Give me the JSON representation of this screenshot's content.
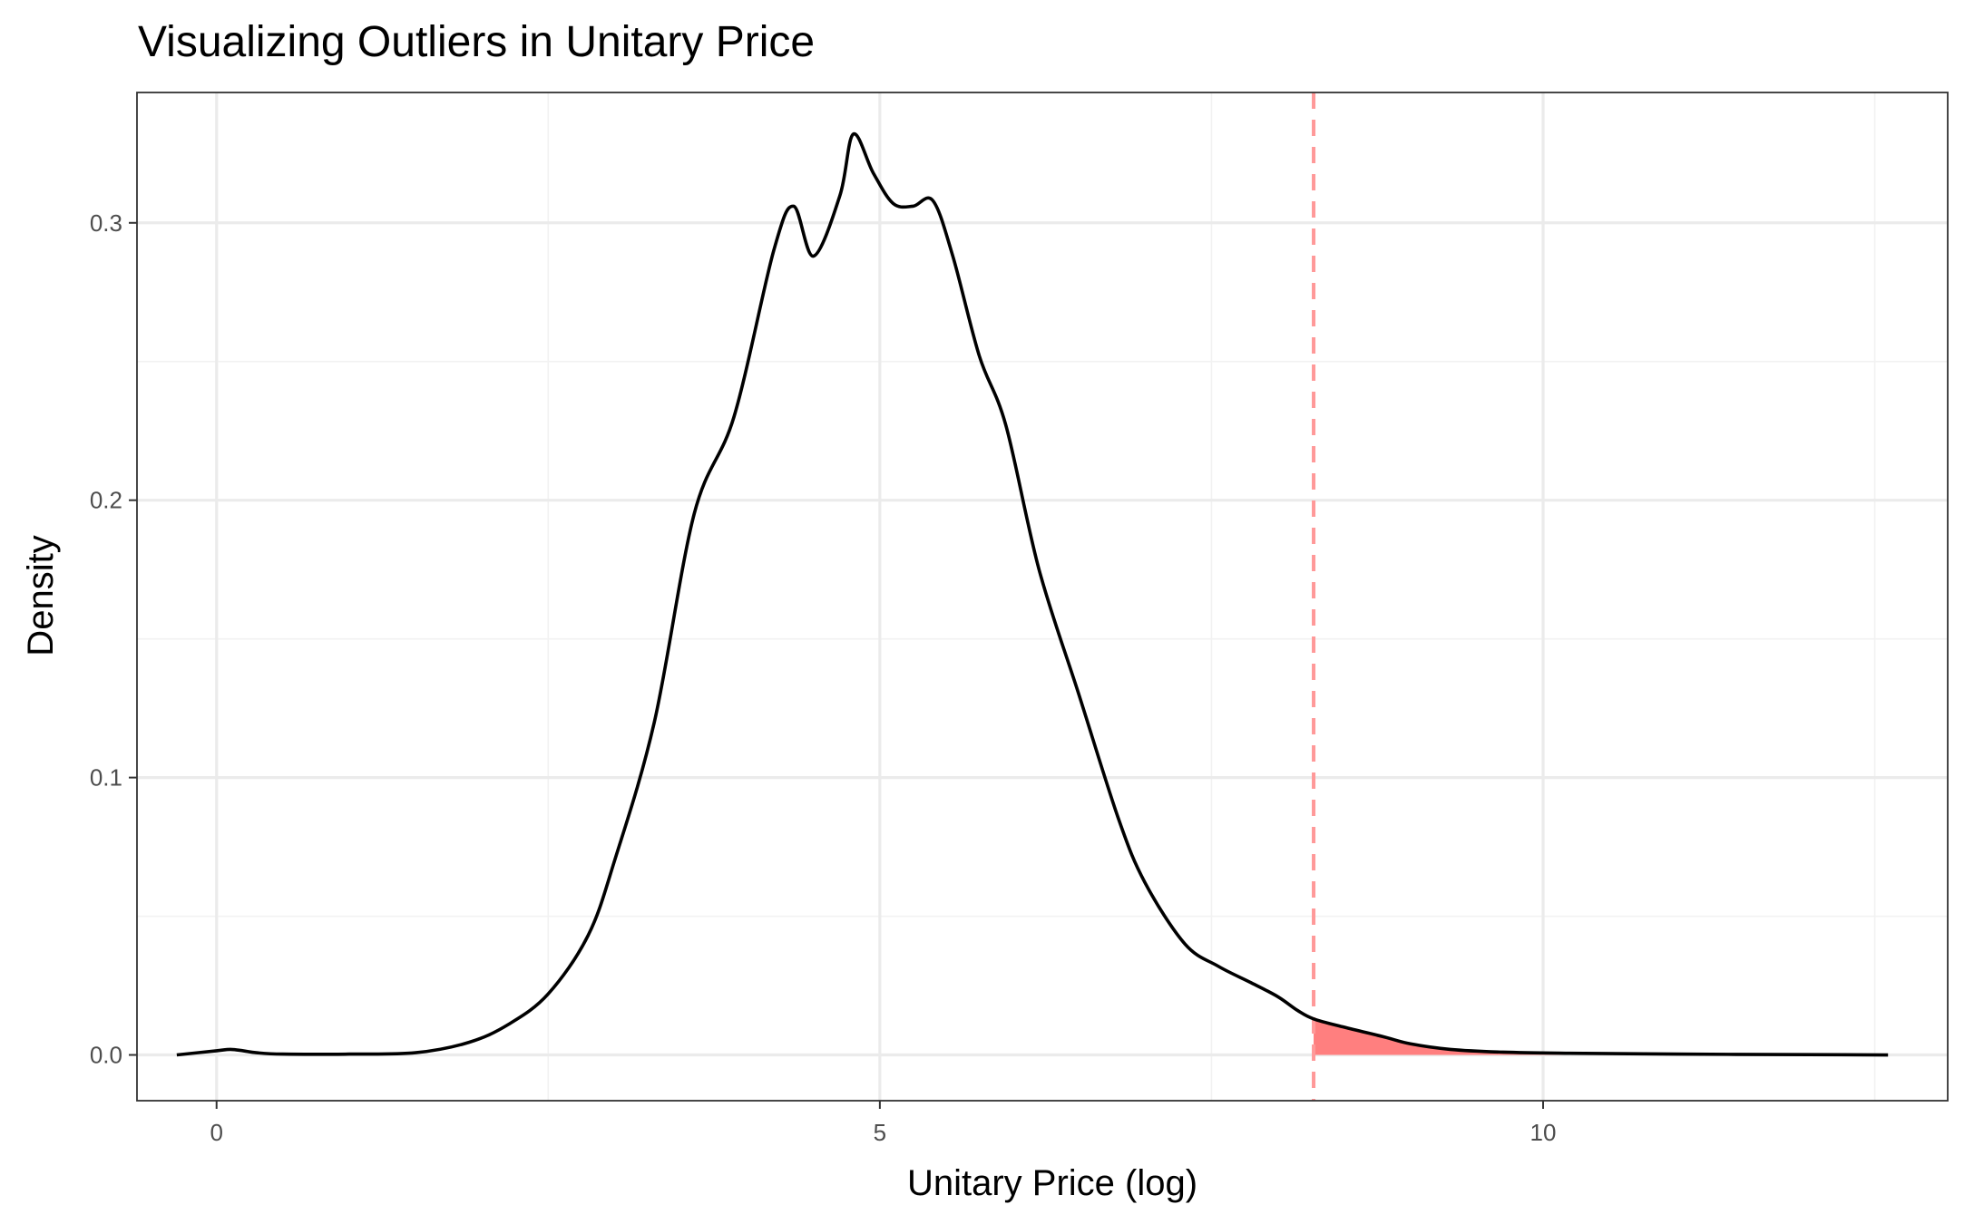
{
  "chart_data": {
    "type": "area",
    "title": "Visualizing Outliers in Unitary Price",
    "xlabel": "Unitary Price (log)",
    "ylabel": "Density",
    "xlim": [
      -0.6,
      13.05
    ],
    "ylim": [
      -0.0165,
      0.347
    ],
    "x_ticks": [
      0,
      5,
      10
    ],
    "x_tick_labels": [
      "0",
      "5",
      "10"
    ],
    "y_ticks": [
      0.0,
      0.1,
      0.2,
      0.3
    ],
    "y_tick_labels": [
      "0.0",
      "0.1",
      "0.2",
      "0.3"
    ],
    "grid": true,
    "outlier_threshold": 8.27,
    "colors": {
      "line": "#000000",
      "outlier_fill": "#ff7f7f",
      "threshold_line": "#ff9999",
      "grid_major": "#ebebeb",
      "grid_minor": "#f2f2f2",
      "panel_border": "#333333"
    },
    "series": [
      {
        "x": [
          -0.3,
          0.0,
          0.1,
          0.2,
          0.3,
          0.5,
          1.0,
          1.5,
          1.9,
          2.2,
          2.5,
          2.8,
          3.0,
          3.3,
          3.6,
          3.9,
          4.2,
          4.35,
          4.5,
          4.7,
          4.8,
          4.95,
          5.1,
          5.25,
          5.4,
          5.55,
          5.75,
          5.95,
          6.2,
          6.5,
          6.8,
          7.0,
          7.3,
          7.55,
          7.8,
          8.0,
          8.15,
          8.27,
          8.5,
          8.8,
          9.0,
          9.3,
          9.7,
          10.2,
          11.0,
          12.0,
          12.6
        ],
        "y": [
          0.0,
          0.0015,
          0.002,
          0.0015,
          0.0008,
          0.0003,
          0.0003,
          0.0008,
          0.0045,
          0.011,
          0.022,
          0.043,
          0.07,
          0.12,
          0.195,
          0.23,
          0.29,
          0.306,
          0.288,
          0.31,
          0.332,
          0.318,
          0.307,
          0.306,
          0.308,
          0.288,
          0.252,
          0.227,
          0.175,
          0.13,
          0.085,
          0.062,
          0.04,
          0.032,
          0.026,
          0.021,
          0.016,
          0.013,
          0.01,
          0.0065,
          0.004,
          0.002,
          0.001,
          0.0006,
          0.0003,
          0.0001,
          0.0
        ]
      }
    ]
  }
}
